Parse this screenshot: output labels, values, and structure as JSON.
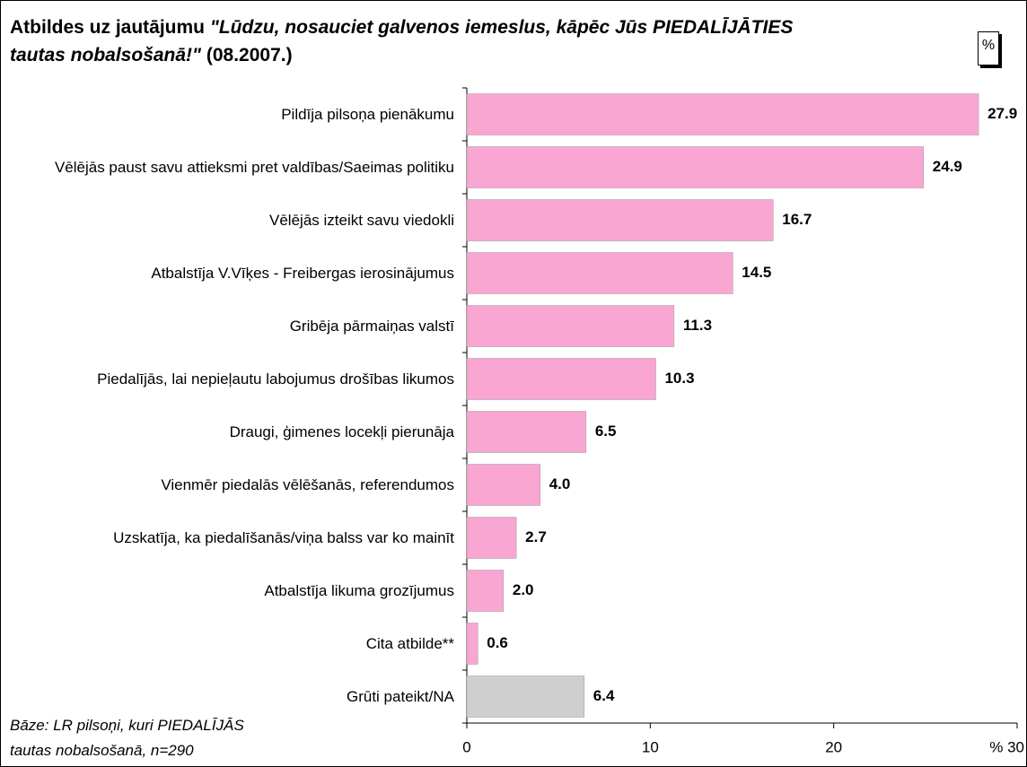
{
  "chart_data": {
    "type": "barh",
    "title": [
      "Atbildes uz jautājumu",
      "\"Lūdzu, nosauciet galvenos iemeslus, kāpēc Jūs PIEDALĪJĀTIES tautas nobalsošanā!\"",
      "(08.2007.)"
    ],
    "unit_box": "%",
    "note": [
      "Bāze: LR pilsoņi, kuri PIEDALĪJĀS",
      "tautas nobalsošanā, n=290"
    ],
    "categories": [
      "Pildīja pilsoņa pienākumu",
      "Vēlējās paust savu attieksmi pret valdības/Saeimas politiku",
      "Vēlējās izteikt savu viedokli",
      "Atbalstīja V.Vīķes - Freibergas ierosinājumus",
      "Gribēja pārmaiņas valstī",
      "Piedalījās, lai nepieļautu labojumus drošības likumos",
      "Draugi, ģimenes locekļi pierunāja",
      "Vienmēr piedalās vēlēšanās, referendumos",
      "Uzskatīja, ka piedalīšanās/viņa balss var ko mainīt",
      "Atbalstīja likuma grozījumus",
      "Cita atbilde**",
      "Grūti pateikt/NA"
    ],
    "values": [
      27.9,
      24.9,
      16.7,
      14.5,
      11.3,
      10.3,
      6.5,
      4.0,
      2.7,
      2.0,
      0.6,
      6.4
    ],
    "value_labels": [
      "27.9",
      "24.9",
      "16.7",
      "14.5",
      "11.3",
      "10.3",
      "6.5",
      "4.0",
      "2.7",
      "2.0",
      "0.6",
      "6.4"
    ],
    "colors": [
      "#f9a6d2",
      "#f9a6d2",
      "#f9a6d2",
      "#f9a6d2",
      "#f9a6d2",
      "#f9a6d2",
      "#f9a6d2",
      "#f9a6d2",
      "#f9a6d2",
      "#f9a6d2",
      "#f9a6d2",
      "#cfcfcf"
    ],
    "xlim": [
      0,
      30
    ],
    "xticks": [
      0,
      10,
      20,
      {
        "value": 30,
        "label": "% 30"
      }
    ]
  }
}
